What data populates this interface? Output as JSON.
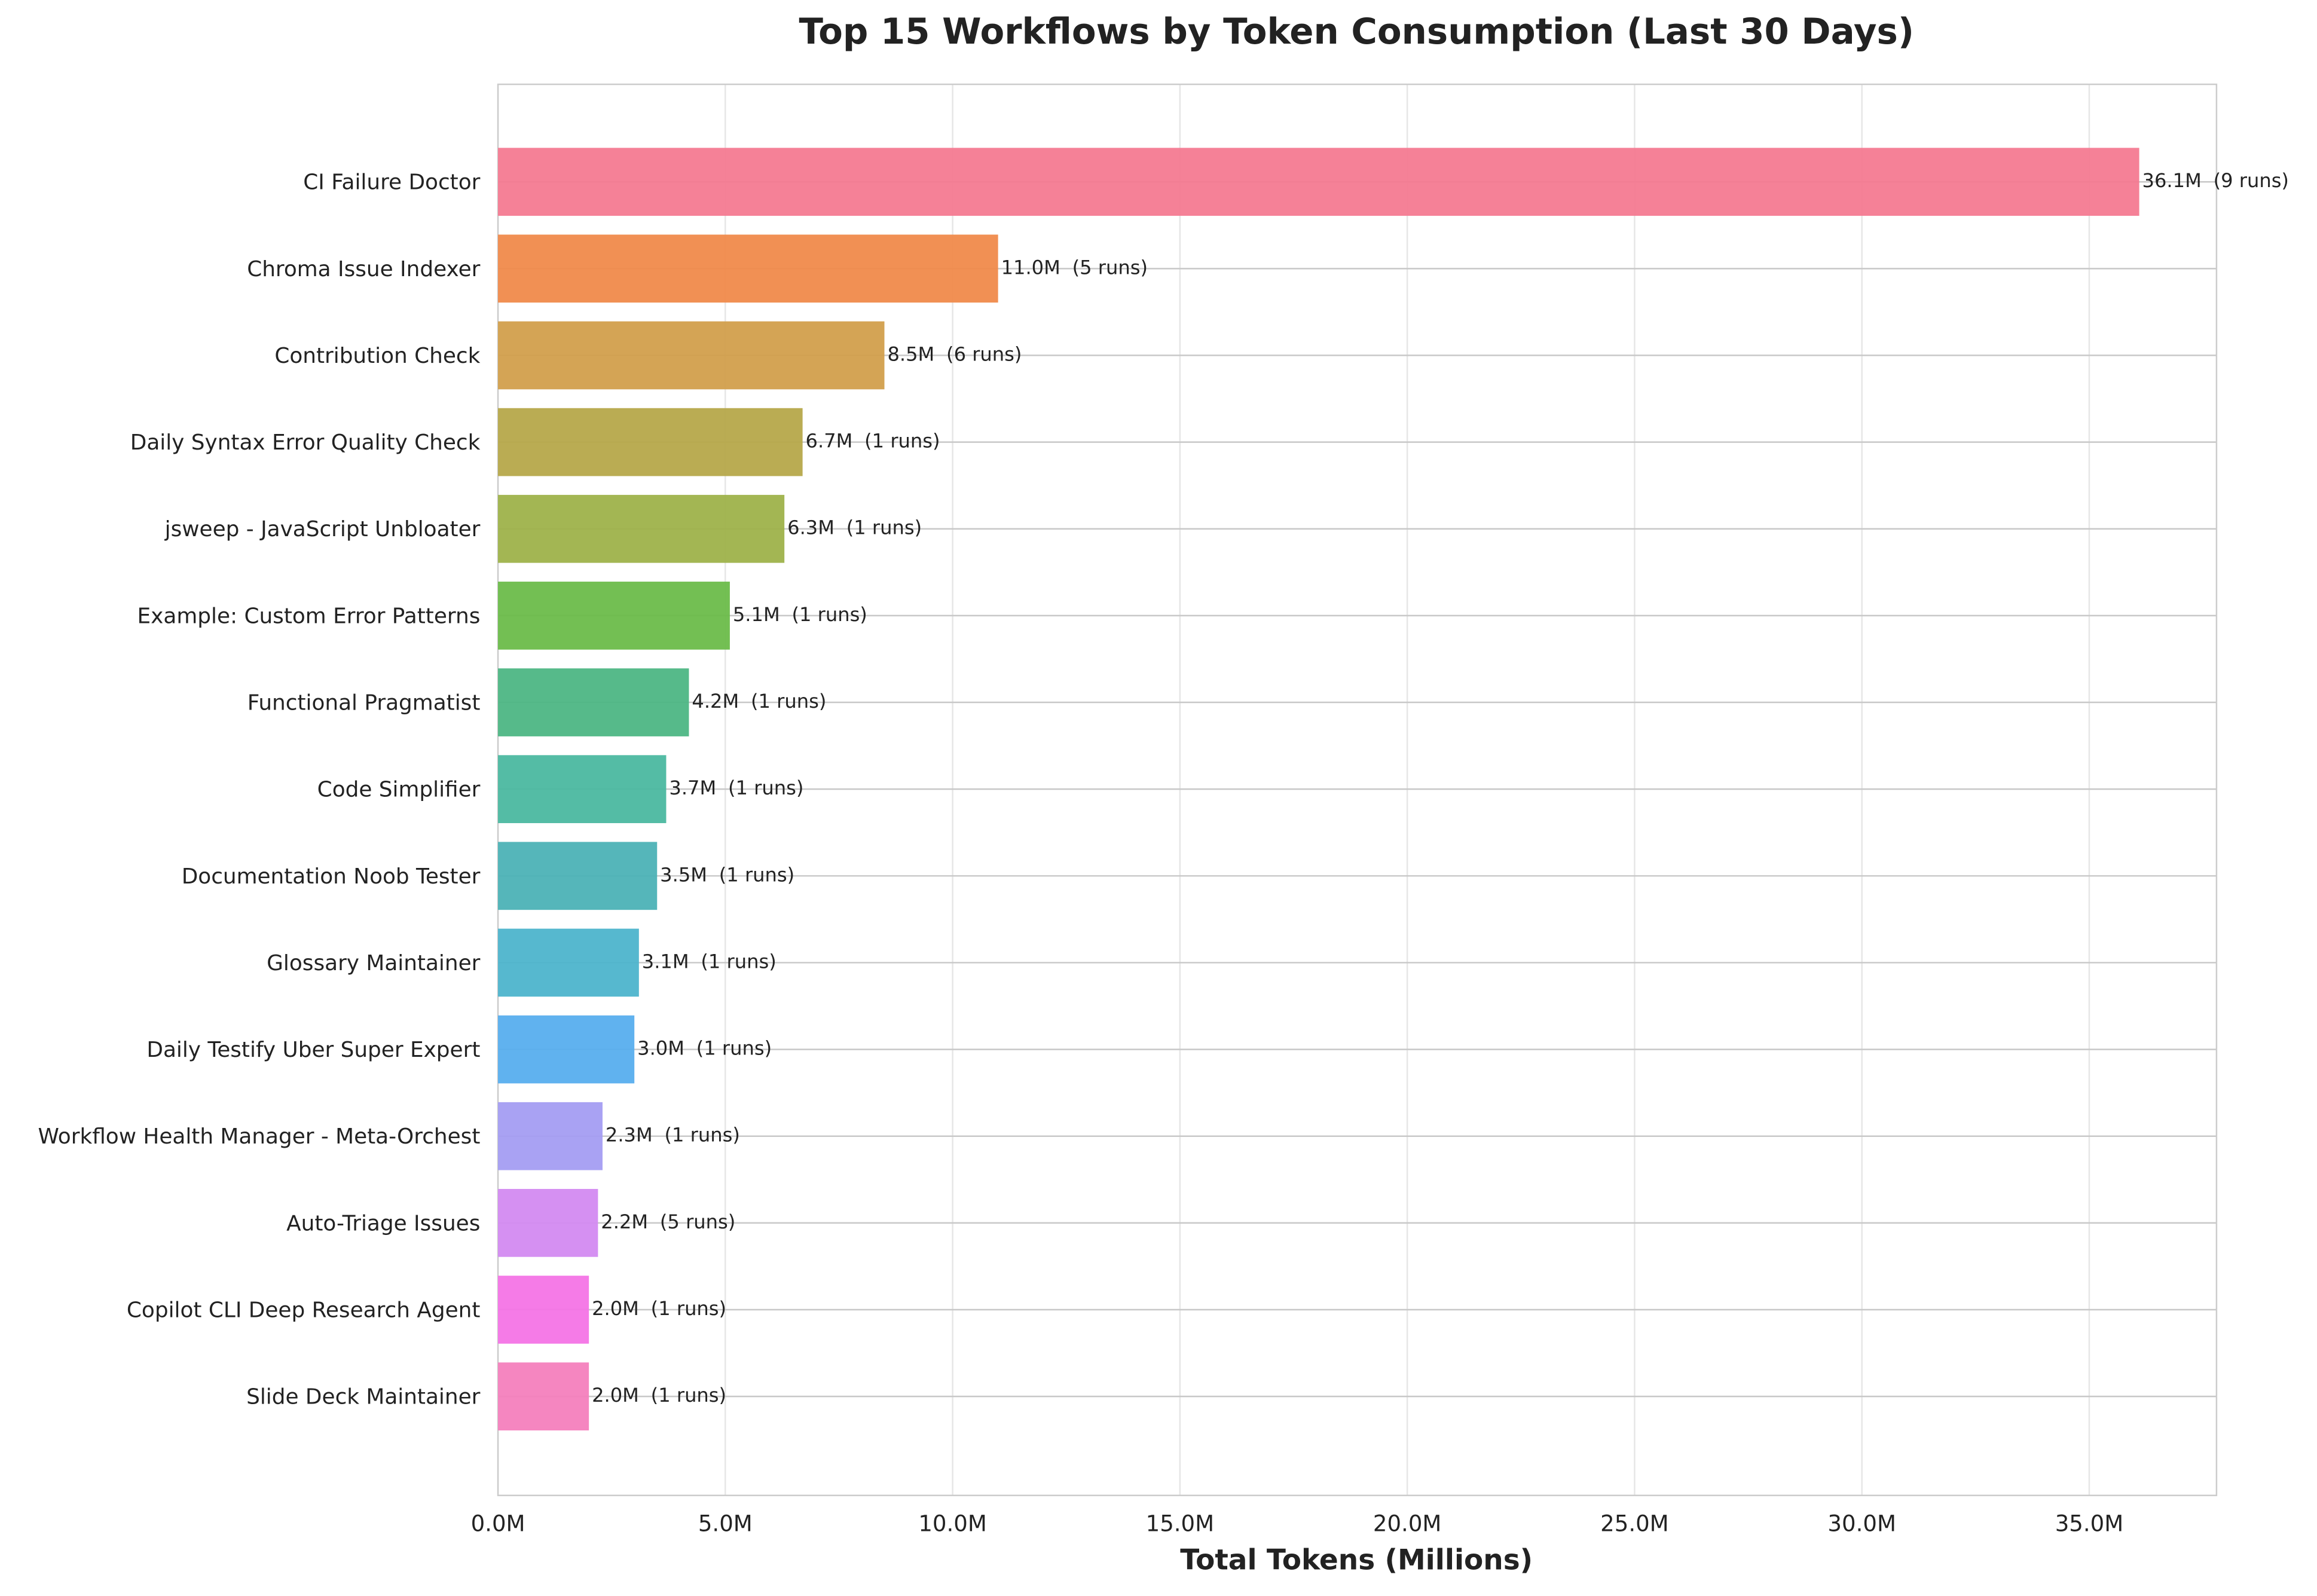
{
  "chart_data": {
    "type": "hbar",
    "title": "Top 15 Workflows by Token Consumption (Last 30 Days)",
    "x_label": "Total Tokens (Millions)",
    "categories": [
      "CI Failure Doctor",
      "Chroma Issue Indexer",
      "Contribution Check",
      "Daily Syntax Error Quality Check",
      "jsweep - JavaScript Unbloater",
      "Example: Custom Error Patterns",
      "Functional Pragmatist",
      "Code Simplifier",
      "Documentation Noob Tester",
      "Glossary Maintainer",
      "Daily Testify Uber Super Expert",
      "Workflow Health Manager - Meta-Orchest",
      "Auto-Triage Issues",
      "Copilot CLI Deep Research Agent",
      "Slide Deck Maintainer"
    ],
    "values": [
      36.1,
      11.0,
      8.5,
      6.7,
      6.3,
      5.1,
      4.2,
      3.7,
      3.5,
      3.1,
      3.0,
      2.3,
      2.2,
      2.0,
      2.0
    ],
    "value_labels": [
      "36.1M",
      "11.0M",
      "8.5M",
      "6.7M",
      "6.3M",
      "5.1M",
      "4.2M",
      "3.7M",
      "3.5M",
      "3.1M",
      "3.0M",
      "2.3M",
      "2.2M",
      "2.0M",
      "2.0M"
    ],
    "run_labels": [
      "(9 runs)",
      "(5 runs)",
      "(6 runs)",
      "(1 runs)",
      "(1 runs)",
      "(1 runs)",
      "(1 runs)",
      "(1 runs)",
      "(1 runs)",
      "(1 runs)",
      "(1 runs)",
      "(1 runs)",
      "(5 runs)",
      "(1 runs)",
      "(1 runs)"
    ],
    "colors": [
      "#f47a91",
      "#f08a4b",
      "#d29f4c",
      "#b6a84a",
      "#9eb24a",
      "#6bbc4a",
      "#4db684",
      "#4bb8a0",
      "#4cb2b6",
      "#4db4cc",
      "#57aeee",
      "#a49df2",
      "#d38af1",
      "#f474e6",
      "#f47fbd"
    ],
    "xlim": [
      0,
      37.8
    ],
    "xticks": [
      {
        "value": 0,
        "label": "0.0M"
      },
      {
        "value": 5,
        "label": "5.0M"
      },
      {
        "value": 10,
        "label": "10.0M"
      },
      {
        "value": 15,
        "label": "15.0M"
      },
      {
        "value": 20,
        "label": "20.0M"
      },
      {
        "value": 25,
        "label": "25.0M"
      },
      {
        "value": 30,
        "label": "30.0M"
      },
      {
        "value": 35,
        "label": "35.0M"
      }
    ],
    "grid": true
  }
}
